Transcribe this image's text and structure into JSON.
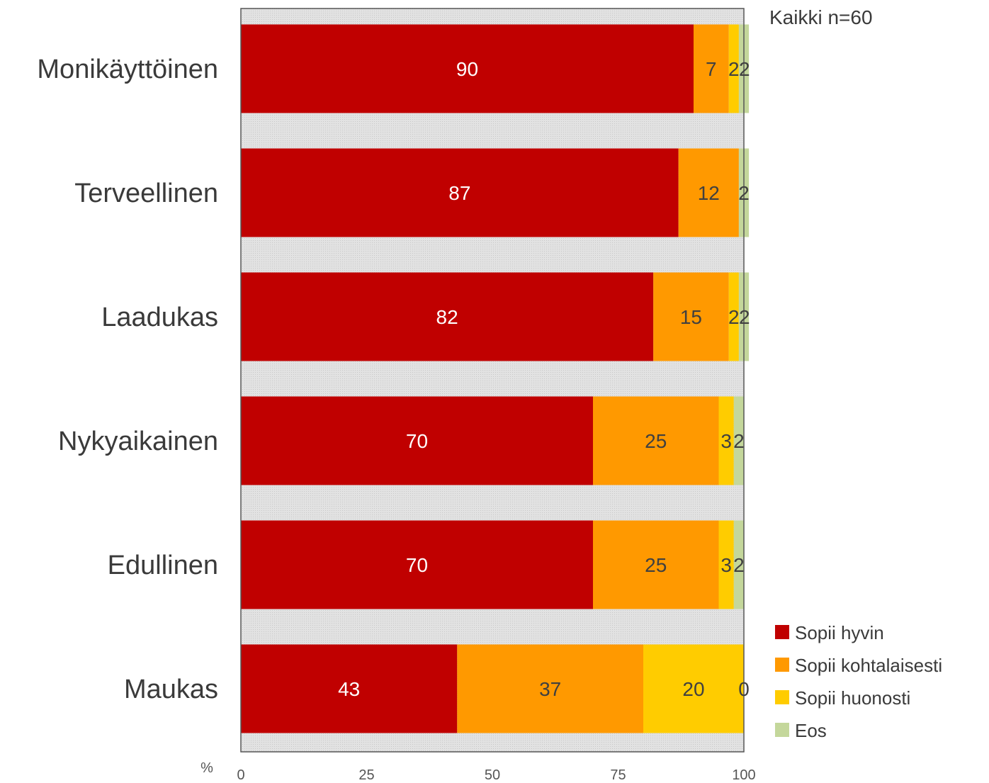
{
  "chart_data": {
    "type": "bar",
    "orientation": "horizontal",
    "stacked": true,
    "title": "",
    "xlabel": "",
    "ylabel": "",
    "x_unit": "%",
    "xlim": [
      0,
      100
    ],
    "x_ticks": [
      "0",
      "25",
      "50",
      "75",
      "100"
    ],
    "note": "Kaikki n=60",
    "legend_position": "bottom-right",
    "categories": [
      "Monikäyttöinen",
      "Terveellinen",
      "Laadukas",
      "Nykyaikainen",
      "Edullinen",
      "Maukas"
    ],
    "series": [
      {
        "name": "Sopii hyvin",
        "color": "#c00000",
        "label_color": "#ffffff",
        "values": [
          90,
          87,
          82,
          70,
          70,
          43
        ]
      },
      {
        "name": "Sopii kohtalaisesti",
        "color": "#ff9900",
        "label_color": "#404040",
        "values": [
          7,
          12,
          15,
          25,
          25,
          37
        ]
      },
      {
        "name": "Sopii huonosti",
        "color": "#ffcc00",
        "label_color": "#404040",
        "values": [
          2,
          0,
          2,
          3,
          3,
          20
        ]
      },
      {
        "name": "Eos",
        "color": "#c4d79b",
        "label_color": "#404040",
        "values": [
          2,
          2,
          2,
          2,
          2,
          0
        ]
      }
    ],
    "data_labels": [
      [
        "90",
        "7",
        "2",
        "2"
      ],
      [
        "87",
        "12",
        "",
        "2"
      ],
      [
        "82",
        "15",
        "2",
        "2"
      ],
      [
        "70",
        "25",
        "3",
        "2"
      ],
      [
        "70",
        "25",
        "3",
        "2"
      ],
      [
        "43",
        "37",
        "20",
        "0"
      ]
    ]
  }
}
